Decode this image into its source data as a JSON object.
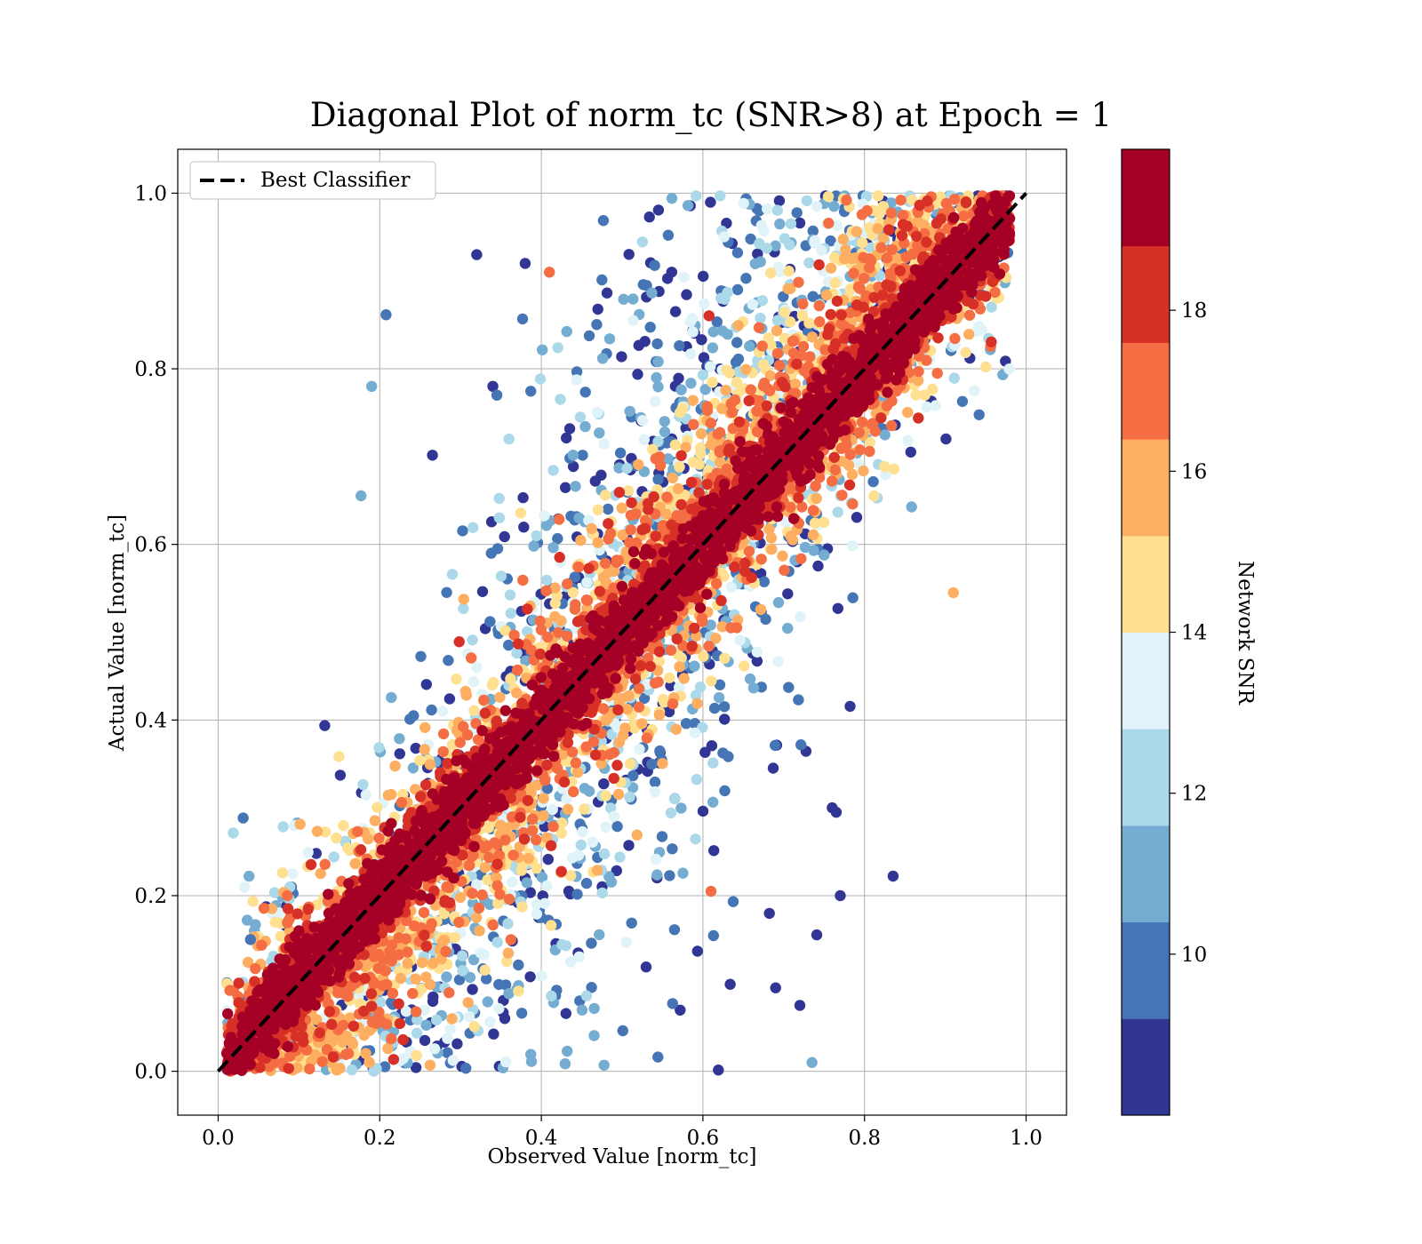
{
  "chart_data": {
    "type": "scatter",
    "title": "Diagonal Plot of norm_tc (SNR>8) at Epoch = 1",
    "xlabel": "Observed Value [norm_tc]",
    "ylabel": "Actual Value [norm_tc]",
    "xlim": [
      -0.05,
      1.05
    ],
    "ylim": [
      -0.05,
      1.05
    ],
    "xticks": [
      0.0,
      0.2,
      0.4,
      0.6,
      0.8,
      1.0
    ],
    "xtick_labels": [
      "0.0",
      "0.2",
      "0.4",
      "0.6",
      "0.8",
      "1.0"
    ],
    "yticks": [
      0.0,
      0.2,
      0.4,
      0.6,
      0.8,
      1.0
    ],
    "ytick_labels": [
      "0.0",
      "0.2",
      "0.4",
      "0.6",
      "0.8",
      "1.0"
    ],
    "grid": true,
    "legend": {
      "placement": "upper-left",
      "entries": [
        "Best Classifier"
      ]
    },
    "reference_line": {
      "name": "Best Classifier",
      "style": "dashed",
      "color": "#000000",
      "points": [
        [
          0.0,
          0.0
        ],
        [
          1.0,
          1.0
        ]
      ]
    },
    "point_color_variable": "Network SNR",
    "colorbar": {
      "label": "Network SNR",
      "min": 8,
      "max": 20,
      "ticks": [
        10,
        12,
        14,
        16,
        18
      ],
      "tick_labels": [
        "10",
        "12",
        "14",
        "16",
        "18"
      ],
      "colors": [
        "#313695",
        "#4575b4",
        "#74add1",
        "#abd9e9",
        "#e0f3f8",
        "#fee090",
        "#fdae61",
        "#f46d43",
        "#d73027",
        "#a50026"
      ]
    },
    "notable_outliers": [
      {
        "x": 0.32,
        "y": 0.93,
        "snr": 8.5
      },
      {
        "x": 0.38,
        "y": 0.92,
        "snr": 8.5
      },
      {
        "x": 0.19,
        "y": 0.78,
        "snr": 10.5
      },
      {
        "x": 0.34,
        "y": 0.78,
        "snr": 8.5
      },
      {
        "x": 0.345,
        "y": 0.77,
        "snr": 9.5
      },
      {
        "x": 0.36,
        "y": 0.72,
        "snr": 12.5
      },
      {
        "x": 0.41,
        "y": 0.91,
        "snr": 17.5
      },
      {
        "x": 0.76,
        "y": 0.3,
        "snr": 8.5
      },
      {
        "x": 0.765,
        "y": 0.295,
        "snr": 8.5
      },
      {
        "x": 0.77,
        "y": 0.2,
        "snr": 8.5
      },
      {
        "x": 0.61,
        "y": 0.205,
        "snr": 17.5
      },
      {
        "x": 0.91,
        "y": 0.545,
        "snr": 15.5
      },
      {
        "x": 0.04,
        "y": 0.15,
        "snr": 9.5
      },
      {
        "x": 0.69,
        "y": 0.095,
        "snr": 8.5
      },
      {
        "x": 0.72,
        "y": 0.075,
        "snr": 8.5
      },
      {
        "x": 0.735,
        "y": 0.01,
        "snr": 11.5
      }
    ]
  }
}
